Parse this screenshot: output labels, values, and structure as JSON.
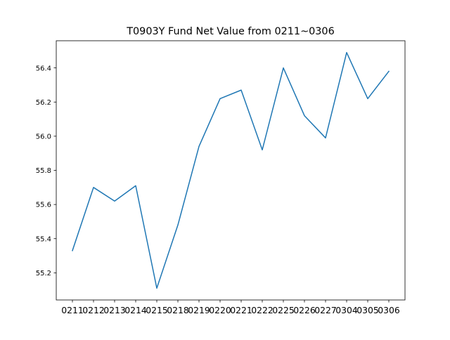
{
  "chart_data": {
    "type": "line",
    "title": "T0903Y Fund Net Value from 0211~0306",
    "xlabel": "",
    "ylabel": "",
    "categories": [
      "0211",
      "0212",
      "0213",
      "0214",
      "0215",
      "0218",
      "0219",
      "0220",
      "0221",
      "0222",
      "0225",
      "0226",
      "0227",
      "0304",
      "0305",
      "0306"
    ],
    "series": [
      {
        "values": [
          55.33,
          55.7,
          55.62,
          55.71,
          55.11,
          55.48,
          55.94,
          56.22,
          56.27,
          55.92,
          56.4,
          56.12,
          55.99,
          56.49,
          56.22,
          56.38
        ],
        "color": "#1f77b4"
      }
    ],
    "ylim": [
      55.041,
      56.559
    ],
    "yticks": [
      "55.2",
      "55.4",
      "55.6",
      "55.8",
      "56.0",
      "56.2",
      "56.4"
    ],
    "grid": false,
    "legend": "none"
  }
}
